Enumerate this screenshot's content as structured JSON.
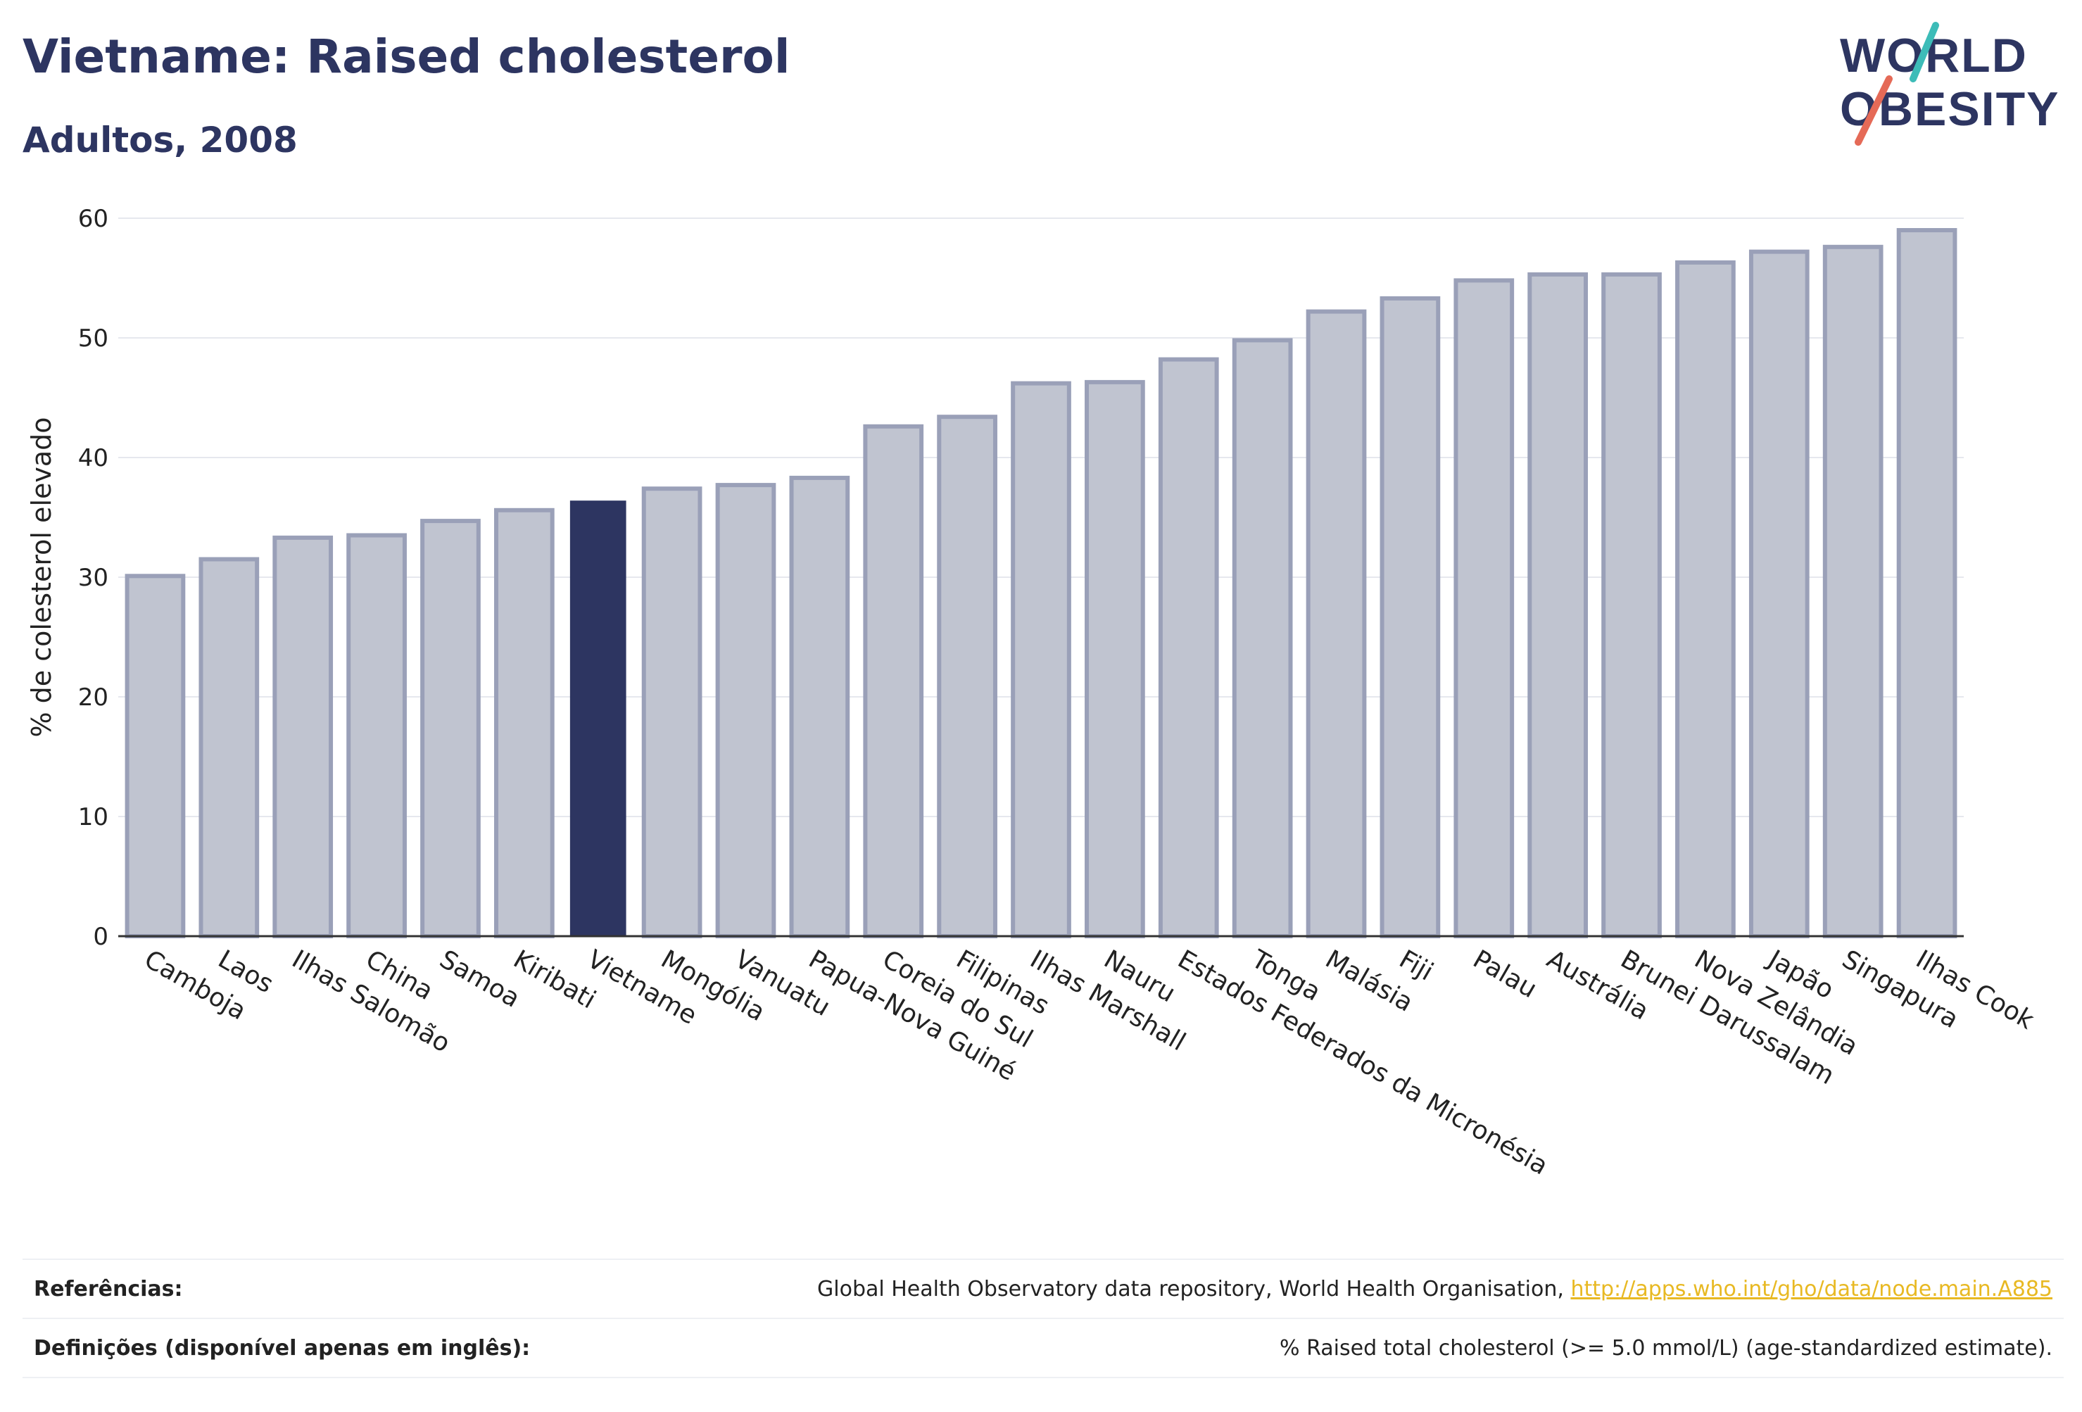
{
  "header": {
    "title": "Vietname: Raised cholesterol",
    "subtitle": "Adultos, 2008"
  },
  "logo": {
    "line1": "WORLD",
    "line2": "OBESITY",
    "name": "world-obesity-logo"
  },
  "colors": {
    "highlight": "#2d3561",
    "bar": "#c0c4d0",
    "bar_edge": "#9aa0b8",
    "accent_teal": "#3dbcb8",
    "accent_red": "#e56a57",
    "link": "#e8b923"
  },
  "chart_data": {
    "type": "bar",
    "ylabel": "% de colesterol elevado",
    "ylim": [
      0,
      60
    ],
    "yticks": [
      0,
      10,
      20,
      30,
      40,
      50,
      60
    ],
    "grid": true,
    "highlight": "Vietname",
    "categories": [
      "Camboja",
      "Laos",
      "Ilhas Salomão",
      "China",
      "Samoa",
      "Kiribati",
      "Vietname",
      "Mongólia",
      "Vanuatu",
      "Papua-Nova Guiné",
      "Coreia do Sul",
      "Filipinas",
      "Ilhas Marshall",
      "Nauru",
      "Estados Federados da Micronésia",
      "Tonga",
      "Malásia",
      "Fiji",
      "Palau",
      "Austrália",
      "Brunei Darussalam",
      "Nova Zelândia",
      "Japão",
      "Singapura",
      "Ilhas Cook"
    ],
    "values": [
      30.1,
      31.5,
      33.3,
      33.5,
      34.7,
      35.6,
      36.4,
      37.4,
      37.7,
      38.3,
      42.6,
      43.4,
      46.2,
      46.3,
      48.2,
      49.8,
      52.2,
      53.3,
      54.8,
      55.3,
      55.3,
      56.3,
      57.2,
      57.6,
      59.0
    ]
  },
  "footer": {
    "references_label": "Referências:",
    "references_text": "Global Health Observatory data repository, World Health Organisation, ",
    "references_link": "http://apps.who.int/gho/data/node.main.A885",
    "definitions_label": "Definições (disponível apenas em inglês):",
    "definitions_text": "% Raised total cholesterol (>= 5.0 mmol/L) (age-standardized estimate)."
  }
}
